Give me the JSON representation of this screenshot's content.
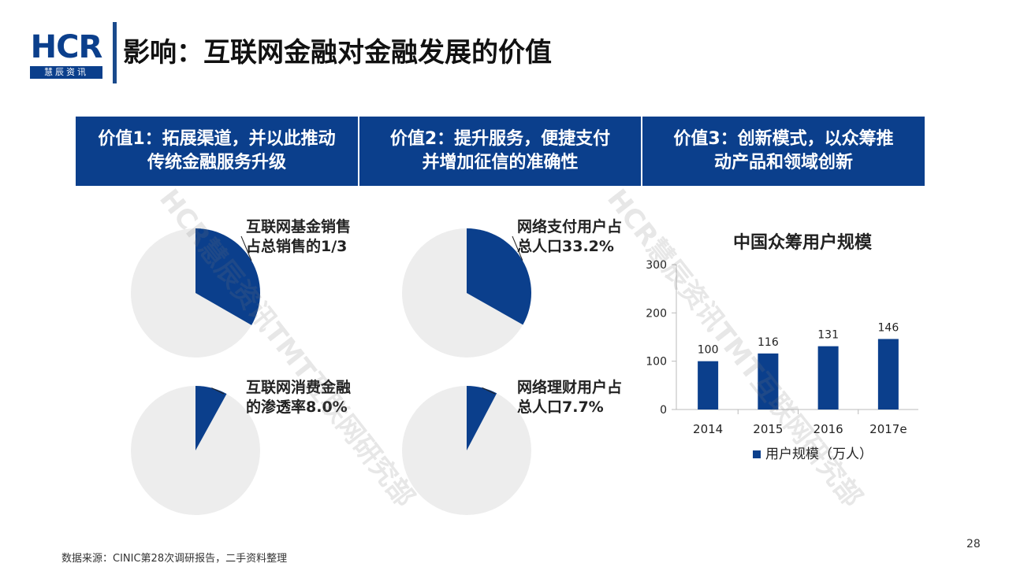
{
  "logo": {
    "main": "HCR",
    "sub": "慧辰资讯"
  },
  "page": {
    "title": "影响：互联网金融对金融发展的价值",
    "number": "28"
  },
  "values": [
    {
      "line1": "价值1：拓展渠道，并以此推动",
      "line2": "传统金融服务升级"
    },
    {
      "line1": "价值2：提升服务，便捷支付",
      "line2": "并增加征信的准确性"
    },
    {
      "line1": "价值3：创新模式，以众筹推",
      "line2": "动产品和领域创新"
    }
  ],
  "pies": [
    {
      "line1": "互联网基金销售",
      "line2": "占总销售的1/3"
    },
    {
      "line1": "网络支付用户占",
      "line2": "总人口33.2%"
    },
    {
      "line1": "互联网消费金融",
      "line2": "的渗透率8.0%"
    },
    {
      "line1": "网络理财用户占",
      "line2": "总人口7.7%"
    }
  ],
  "chart_data": [
    {
      "type": "pie",
      "slices": [
        {
          "label": "互联网基金销售占总销售的1/3",
          "value": 33.3
        },
        {
          "value": 66.7
        }
      ]
    },
    {
      "type": "pie",
      "slices": [
        {
          "label": "网络支付用户占总人口33.2%",
          "value": 33.2
        },
        {
          "value": 66.8
        }
      ]
    },
    {
      "type": "pie",
      "slices": [
        {
          "label": "互联网消费金融的渗透率8.0%",
          "value": 8.0
        },
        {
          "value": 92.0
        }
      ]
    },
    {
      "type": "pie",
      "slices": [
        {
          "label": "网络理财用户占总人口7.7%",
          "value": 7.7
        },
        {
          "value": 92.3
        }
      ]
    },
    {
      "type": "bar",
      "title": "中国众筹用户规模",
      "categories": [
        "2014",
        "2015",
        "2016",
        "2017e"
      ],
      "series": [
        {
          "name": "用户规模（万人）",
          "values": [
            100,
            116,
            131,
            146
          ]
        }
      ],
      "yticks": [
        0,
        100,
        200,
        300
      ],
      "ylim": [
        0,
        300
      ],
      "legend": "bottom"
    }
  ],
  "colors": {
    "accent": "#0b3f8c",
    "pie_rest": "#ededed"
  },
  "source": "数据来源：CINIC第28次调研报告，二手资料整理",
  "watermark": "HCR慧辰资讯TMT互联网研究部"
}
